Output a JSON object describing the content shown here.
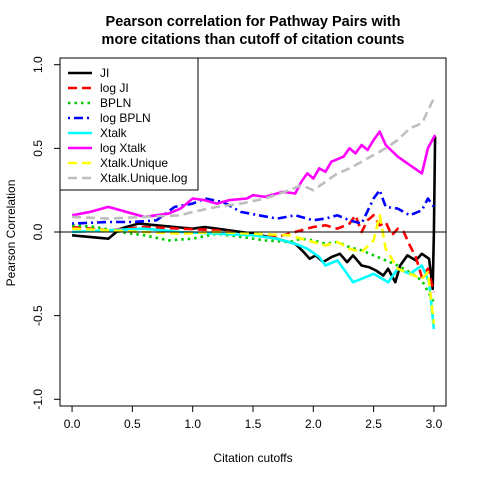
{
  "chart_data": {
    "type": "line",
    "title": [
      "Pearson correlation for Pathway Pairs with",
      "more citations than cutoff of citation counts"
    ],
    "xlabel": "Citation cutoffs",
    "ylabel": "Pearson Correlation",
    "xlim": [
      -0.1,
      3.1
    ],
    "ylim": [
      -1.04,
      1.04
    ],
    "x_ticks": [
      0.0,
      0.5,
      1.0,
      1.5,
      2.0,
      2.5,
      3.0
    ],
    "x_tick_labels": [
      "0.0",
      "0.5",
      "1.0",
      "1.5",
      "2.0",
      "2.5",
      "3.0"
    ],
    "y_ticks": [
      -1.0,
      -0.5,
      0.0,
      0.5,
      1.0
    ],
    "y_tick_labels": [
      "-1.0",
      "-0.5",
      "0.0",
      "0.5",
      "1.0"
    ],
    "reference_line_y": 0,
    "grid": false,
    "legend_position": "top-left",
    "series": [
      {
        "name": "JI",
        "color": "#000000",
        "dash": "solid",
        "points": [
          [
            0.0,
            -0.02
          ],
          [
            0.3,
            -0.04
          ],
          [
            0.4,
            0.02
          ],
          [
            0.55,
            0.05
          ],
          [
            0.7,
            0.04
          ],
          [
            0.85,
            0.03
          ],
          [
            1.0,
            0.02
          ],
          [
            1.1,
            0.03
          ],
          [
            1.3,
            0.01
          ],
          [
            1.5,
            -0.01
          ],
          [
            1.7,
            -0.04
          ],
          [
            1.85,
            -0.07
          ],
          [
            1.92,
            -0.12
          ],
          [
            1.97,
            -0.16
          ],
          [
            2.02,
            -0.14
          ],
          [
            2.08,
            -0.18
          ],
          [
            2.15,
            -0.15
          ],
          [
            2.22,
            -0.13
          ],
          [
            2.28,
            -0.18
          ],
          [
            2.33,
            -0.14
          ],
          [
            2.4,
            -0.2
          ],
          [
            2.46,
            -0.21
          ],
          [
            2.52,
            -0.23
          ],
          [
            2.58,
            -0.26
          ],
          [
            2.62,
            -0.22
          ],
          [
            2.68,
            -0.3
          ],
          [
            2.72,
            -0.2
          ],
          [
            2.78,
            -0.14
          ],
          [
            2.85,
            -0.17
          ],
          [
            2.9,
            -0.13
          ],
          [
            2.96,
            -0.16
          ],
          [
            2.99,
            -0.34
          ],
          [
            3.0,
            0.0
          ],
          [
            3.01,
            0.57
          ]
        ]
      },
      {
        "name": "log JI",
        "color": "#ff0000",
        "dash": "dashed",
        "points": [
          [
            0.0,
            0.03
          ],
          [
            0.3,
            0.01
          ],
          [
            0.6,
            0.03
          ],
          [
            0.9,
            0.02
          ],
          [
            1.2,
            0.01
          ],
          [
            1.5,
            -0.02
          ],
          [
            1.7,
            -0.03
          ],
          [
            1.9,
            0.01
          ],
          [
            2.0,
            0.03
          ],
          [
            2.1,
            0.04
          ],
          [
            2.2,
            0.02
          ],
          [
            2.3,
            0.05
          ],
          [
            2.35,
            0.1
          ],
          [
            2.4,
            0.0
          ],
          [
            2.45,
            0.07
          ],
          [
            2.5,
            0.1
          ],
          [
            2.55,
            0.04
          ],
          [
            2.6,
            0.06
          ],
          [
            2.65,
            -0.02
          ],
          [
            2.7,
            0.02
          ],
          [
            2.75,
            0.0
          ],
          [
            2.8,
            -0.08
          ],
          [
            2.85,
            -0.15
          ],
          [
            2.9,
            -0.27
          ],
          [
            2.95,
            -0.22
          ],
          [
            3.0,
            -0.36
          ]
        ]
      },
      {
        "name": "BPLN",
        "color": "#00cd00",
        "dash": "dotted",
        "points": [
          [
            0.0,
            0.04
          ],
          [
            0.2,
            0.03
          ],
          [
            0.4,
            0.0
          ],
          [
            0.6,
            -0.02
          ],
          [
            0.8,
            -0.05
          ],
          [
            1.0,
            -0.04
          ],
          [
            1.2,
            -0.01
          ],
          [
            1.4,
            -0.03
          ],
          [
            1.6,
            -0.05
          ],
          [
            1.8,
            -0.06
          ],
          [
            1.9,
            -0.04
          ],
          [
            2.0,
            -0.05
          ],
          [
            2.1,
            -0.07
          ],
          [
            2.2,
            -0.06
          ],
          [
            2.3,
            -0.09
          ],
          [
            2.4,
            -0.11
          ],
          [
            2.5,
            -0.14
          ],
          [
            2.6,
            -0.17
          ],
          [
            2.7,
            -0.2
          ],
          [
            2.8,
            -0.24
          ],
          [
            2.9,
            -0.29
          ],
          [
            3.0,
            -0.42
          ]
        ]
      },
      {
        "name": "log BPLN",
        "color": "#0000ff",
        "dash": "dashdot",
        "points": [
          [
            0.0,
            0.05
          ],
          [
            0.3,
            0.06
          ],
          [
            0.5,
            0.06
          ],
          [
            0.7,
            0.07
          ],
          [
            0.85,
            0.15
          ],
          [
            1.0,
            0.17
          ],
          [
            1.1,
            0.2
          ],
          [
            1.25,
            0.18
          ],
          [
            1.4,
            0.12
          ],
          [
            1.55,
            0.1
          ],
          [
            1.7,
            0.08
          ],
          [
            1.85,
            0.1
          ],
          [
            2.0,
            0.07
          ],
          [
            2.1,
            0.08
          ],
          [
            2.2,
            0.1
          ],
          [
            2.3,
            0.07
          ],
          [
            2.4,
            0.05
          ],
          [
            2.5,
            0.2
          ],
          [
            2.55,
            0.25
          ],
          [
            2.6,
            0.15
          ],
          [
            2.7,
            0.14
          ],
          [
            2.8,
            0.1
          ],
          [
            2.9,
            0.13
          ],
          [
            2.95,
            0.2
          ],
          [
            3.0,
            0.15
          ]
        ]
      },
      {
        "name": "Xtalk",
        "color": "#00ffff",
        "dash": "solid",
        "points": [
          [
            0.0,
            0.0
          ],
          [
            0.3,
            0.01
          ],
          [
            0.6,
            0.02
          ],
          [
            0.9,
            0.0
          ],
          [
            1.2,
            -0.01
          ],
          [
            1.5,
            -0.02
          ],
          [
            1.7,
            -0.04
          ],
          [
            1.85,
            -0.07
          ],
          [
            1.95,
            -0.1
          ],
          [
            2.05,
            -0.15
          ],
          [
            2.1,
            -0.2
          ],
          [
            2.2,
            -0.17
          ],
          [
            2.28,
            -0.25
          ],
          [
            2.33,
            -0.3
          ],
          [
            2.4,
            -0.28
          ],
          [
            2.5,
            -0.25
          ],
          [
            2.55,
            -0.27
          ],
          [
            2.62,
            -0.3
          ],
          [
            2.7,
            -0.22
          ],
          [
            2.8,
            -0.25
          ],
          [
            2.9,
            -0.2
          ],
          [
            2.96,
            -0.3
          ],
          [
            3.0,
            -0.58
          ]
        ]
      },
      {
        "name": "log Xtalk",
        "color": "#ff00ff",
        "dash": "solid",
        "points": [
          [
            0.0,
            0.1
          ],
          [
            0.15,
            0.12
          ],
          [
            0.3,
            0.15
          ],
          [
            0.45,
            0.12
          ],
          [
            0.6,
            0.09
          ],
          [
            0.8,
            0.11
          ],
          [
            0.9,
            0.14
          ],
          [
            1.0,
            0.2
          ],
          [
            1.1,
            0.19
          ],
          [
            1.2,
            0.17
          ],
          [
            1.3,
            0.19
          ],
          [
            1.45,
            0.2
          ],
          [
            1.5,
            0.22
          ],
          [
            1.6,
            0.21
          ],
          [
            1.75,
            0.24
          ],
          [
            1.85,
            0.23
          ],
          [
            1.9,
            0.3
          ],
          [
            1.95,
            0.35
          ],
          [
            2.0,
            0.32
          ],
          [
            2.05,
            0.38
          ],
          [
            2.1,
            0.36
          ],
          [
            2.15,
            0.42
          ],
          [
            2.25,
            0.45
          ],
          [
            2.3,
            0.5
          ],
          [
            2.35,
            0.47
          ],
          [
            2.4,
            0.52
          ],
          [
            2.45,
            0.49
          ],
          [
            2.5,
            0.55
          ],
          [
            2.55,
            0.6
          ],
          [
            2.6,
            0.52
          ],
          [
            2.7,
            0.45
          ],
          [
            2.8,
            0.4
          ],
          [
            2.9,
            0.35
          ],
          [
            2.95,
            0.5
          ],
          [
            3.01,
            0.58
          ]
        ]
      },
      {
        "name": "Xtalk.Unique",
        "color": "#ffff00",
        "dash": "dashed",
        "points": [
          [
            0.0,
            0.02
          ],
          [
            0.3,
            0.01
          ],
          [
            0.6,
            0.0
          ],
          [
            0.9,
            -0.01
          ],
          [
            1.2,
            0.0
          ],
          [
            1.5,
            -0.01
          ],
          [
            1.8,
            -0.02
          ],
          [
            1.95,
            -0.05
          ],
          [
            2.1,
            -0.08
          ],
          [
            2.2,
            -0.06
          ],
          [
            2.3,
            -0.1
          ],
          [
            2.4,
            -0.12
          ],
          [
            2.5,
            -0.05
          ],
          [
            2.55,
            0.1
          ],
          [
            2.6,
            -0.1
          ],
          [
            2.7,
            -0.22
          ],
          [
            2.8,
            -0.25
          ],
          [
            2.9,
            -0.28
          ],
          [
            2.95,
            -0.24
          ],
          [
            3.0,
            -0.55
          ]
        ]
      },
      {
        "name": "Xtalk.Unique.log",
        "color": "#bebebe",
        "dash": "dashed",
        "points": [
          [
            0.0,
            0.09
          ],
          [
            0.3,
            0.08
          ],
          [
            0.6,
            0.09
          ],
          [
            0.9,
            0.1
          ],
          [
            1.0,
            0.12
          ],
          [
            1.2,
            0.15
          ],
          [
            1.4,
            0.17
          ],
          [
            1.6,
            0.2
          ],
          [
            1.8,
            0.25
          ],
          [
            1.9,
            0.28
          ],
          [
            2.0,
            0.25
          ],
          [
            2.1,
            0.3
          ],
          [
            2.2,
            0.35
          ],
          [
            2.3,
            0.38
          ],
          [
            2.4,
            0.42
          ],
          [
            2.5,
            0.46
          ],
          [
            2.6,
            0.5
          ],
          [
            2.7,
            0.55
          ],
          [
            2.8,
            0.62
          ],
          [
            2.9,
            0.65
          ],
          [
            3.0,
            0.8
          ]
        ]
      }
    ]
  }
}
